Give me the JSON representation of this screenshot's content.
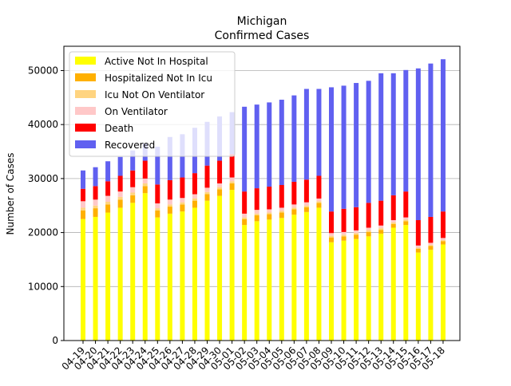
{
  "chart_data": {
    "type": "bar",
    "stacked": true,
    "title": "Michigan",
    "subtitle": "Confirmed Cases",
    "xlabel": "",
    "ylabel": "Number of Cases",
    "ylim": [
      0,
      54500
    ],
    "yticks": [
      0,
      10000,
      20000,
      30000,
      40000,
      50000
    ],
    "grid": "horizontal",
    "legend_position": "top-left",
    "categories": [
      "04-19",
      "04-20",
      "04-21",
      "04-22",
      "04-23",
      "04-24",
      "04-25",
      "04-26",
      "04-27",
      "04-28",
      "04-29",
      "04-30",
      "05-01",
      "05-02",
      "05-03",
      "05-04",
      "05-05",
      "05-06",
      "05-07",
      "05-08",
      "05-09",
      "05-10",
      "05-11",
      "05-12",
      "05-13",
      "05-14",
      "05-15",
      "05-16",
      "05-17",
      "05-18"
    ],
    "series": [
      {
        "name": "Active Not In Hospital",
        "color": "#ffff00",
        "values": [
          22500,
          22900,
          23700,
          24600,
          25500,
          27300,
          22800,
          23500,
          23900,
          24600,
          25900,
          26800,
          27900,
          21400,
          22100,
          22400,
          22700,
          23300,
          23800,
          24600,
          18200,
          18500,
          18800,
          19300,
          19800,
          20900,
          21400,
          16300,
          16800,
          17800
        ]
      },
      {
        "name": "Hospitalized Not In Icu",
        "color": "#ffb000",
        "values": [
          1600,
          1600,
          1500,
          1500,
          1400,
          1300,
          1300,
          1300,
          1300,
          1300,
          1200,
          1200,
          1200,
          1100,
          1100,
          1000,
          1000,
          1000,
          900,
          900,
          900,
          800,
          800,
          800,
          700,
          700,
          700,
          700,
          700,
          600
        ]
      },
      {
        "name": "Icu Not On Ventilator",
        "color": "#ffd480",
        "values": [
          500,
          500,
          500,
          500,
          500,
          500,
          400,
          400,
          400,
          400,
          400,
          400,
          400,
          300,
          300,
          300,
          300,
          300,
          300,
          300,
          300,
          300,
          300,
          300,
          300,
          300,
          300,
          200,
          200,
          200
        ]
      },
      {
        "name": "On Ventilator",
        "color": "#ffc8c8",
        "values": [
          1200,
          1100,
          1100,
          1000,
          1000,
          900,
          900,
          900,
          800,
          800,
          800,
          700,
          700,
          700,
          700,
          600,
          600,
          600,
          600,
          500,
          500,
          500,
          500,
          500,
          500,
          400,
          400,
          400,
          400,
          400
        ]
      },
      {
        "name": "Death",
        "color": "#ff0000",
        "values": [
          2300,
          2500,
          2700,
          2900,
          3100,
          3300,
          3500,
          3600,
          3800,
          3900,
          4100,
          4200,
          4300,
          4100,
          4000,
          4200,
          4200,
          4200,
          4200,
          4200,
          4000,
          4300,
          4300,
          4600,
          4600,
          4600,
          4800,
          4700,
          4800,
          4900
        ]
      },
      {
        "name": "Recovered",
        "color": "#6060f0",
        "values": [
          3400,
          3500,
          3700,
          3500,
          3700,
          3200,
          7000,
          8000,
          8000,
          8400,
          8100,
          8200,
          7800,
          15700,
          15500,
          15600,
          15800,
          16000,
          16800,
          16100,
          23000,
          22800,
          23000,
          22600,
          23600,
          22600,
          22500,
          28100,
          28400,
          28200
        ]
      }
    ]
  }
}
